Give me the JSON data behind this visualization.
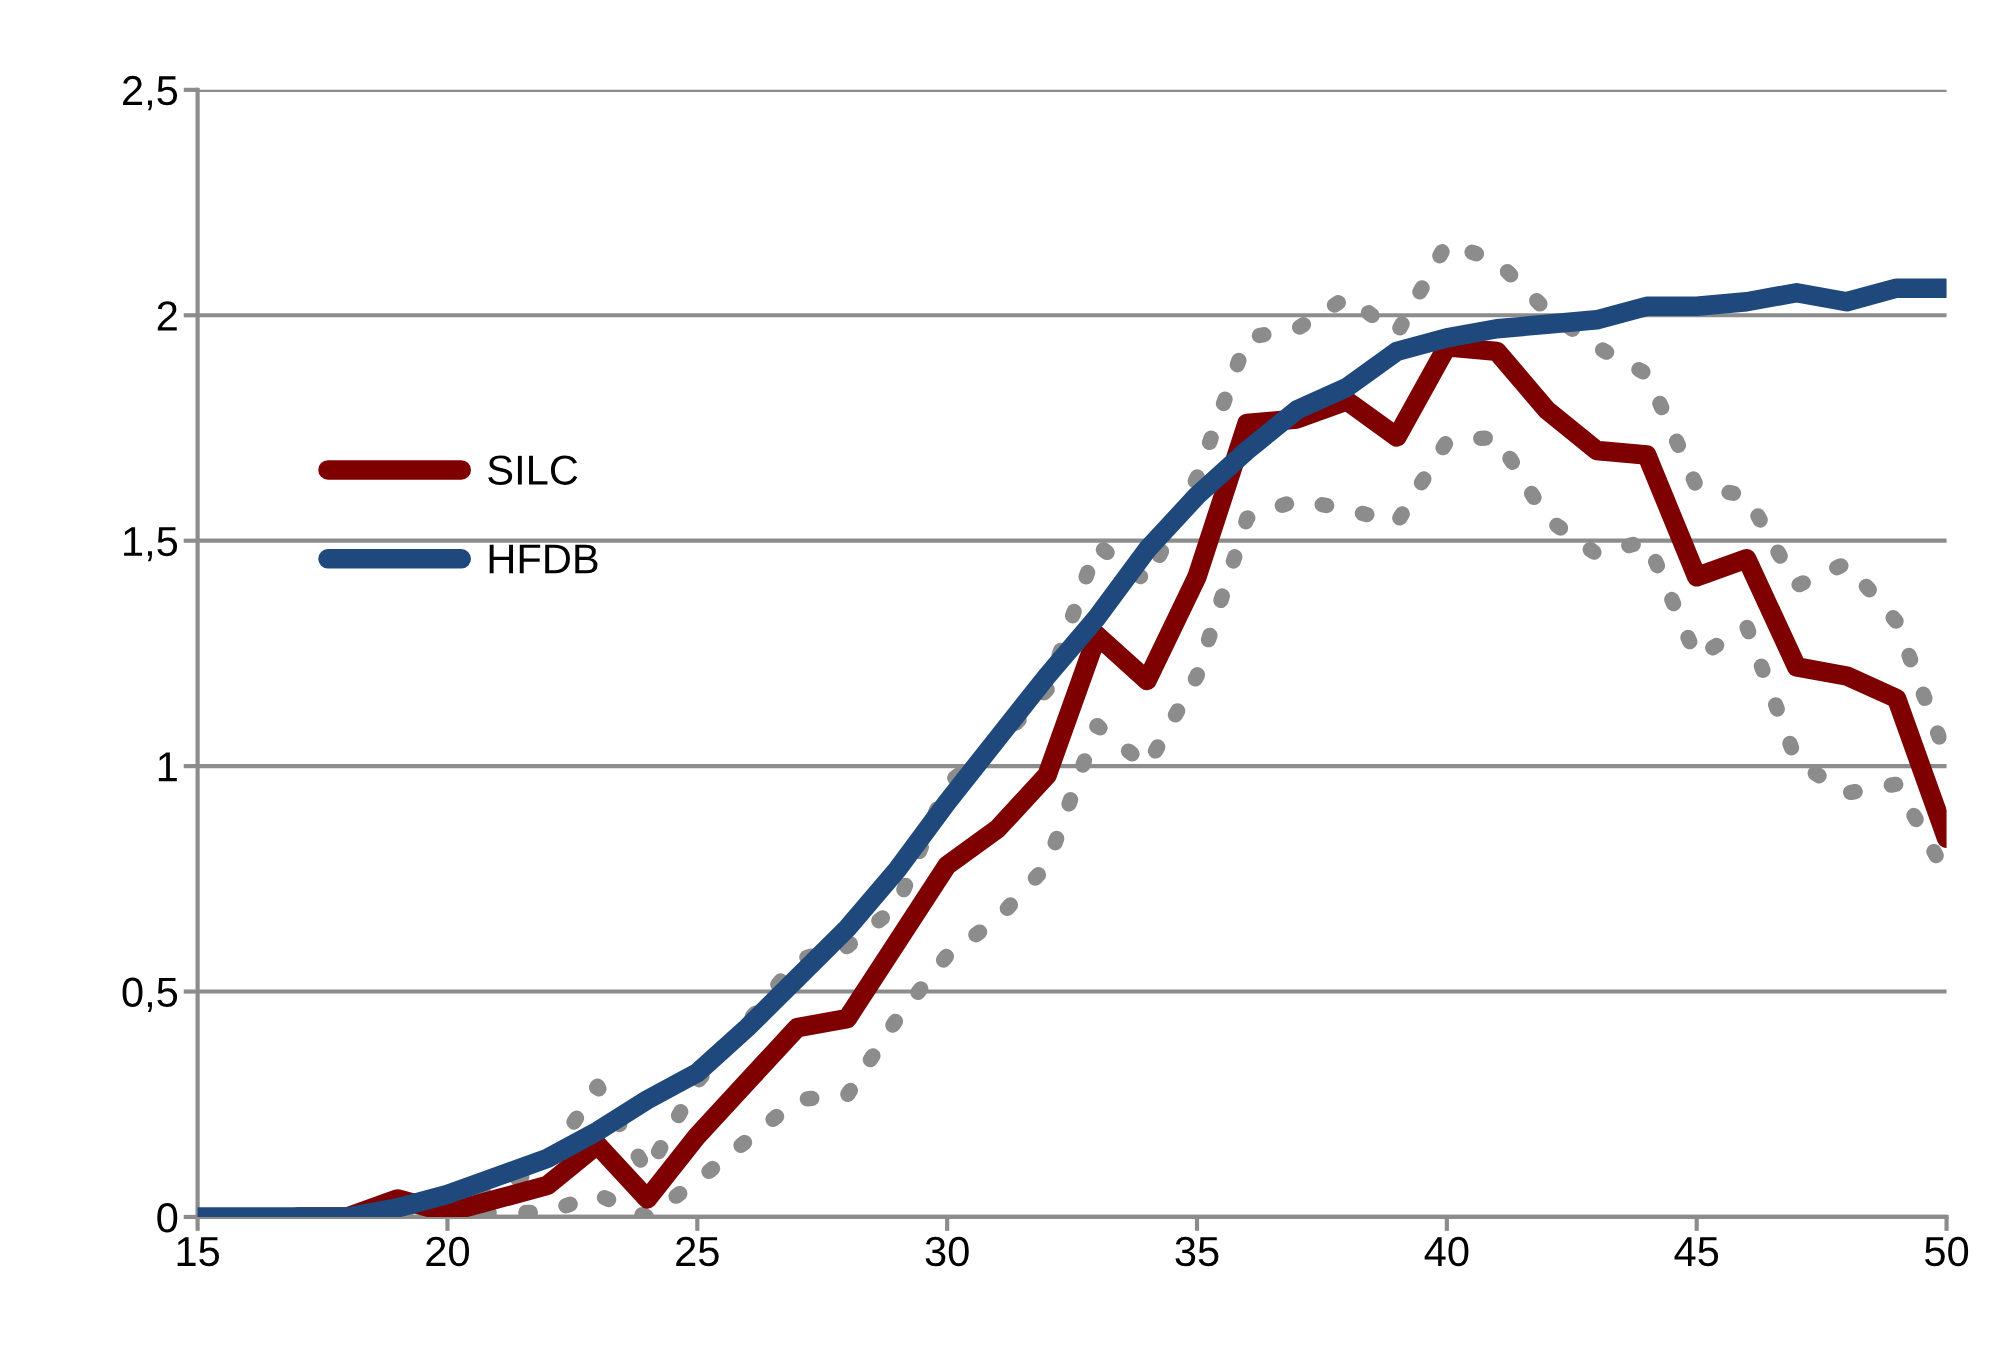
{
  "chart_data": {
    "type": "line",
    "x": [
      15,
      16,
      17,
      18,
      19,
      20,
      21,
      22,
      23,
      24,
      25,
      26,
      27,
      28,
      29,
      30,
      31,
      32,
      33,
      34,
      35,
      36,
      37,
      38,
      39,
      40,
      41,
      42,
      43,
      44,
      45,
      46,
      47,
      48,
      49,
      50
    ],
    "series": [
      {
        "name": "SILC",
        "color": "#7f0000",
        "line_style": "solid",
        "values": [
          null,
          null,
          0,
          0,
          0.04,
          0.01,
          0.04,
          0.07,
          0.16,
          0.04,
          0.18,
          0.3,
          0.42,
          0.44,
          0.61,
          0.78,
          0.86,
          0.98,
          1.29,
          1.19,
          1.42,
          1.76,
          1.77,
          1.81,
          1.73,
          1.93,
          1.92,
          1.79,
          1.7,
          1.69,
          1.42,
          1.46,
          1.22,
          1.2,
          1.15,
          0.84
        ]
      },
      {
        "name": "HFDB",
        "color": "#1f497d",
        "line_style": "solid",
        "values": [
          0,
          0,
          0,
          0,
          0.02,
          0.05,
          0.09,
          0.13,
          0.19,
          0.26,
          0.32,
          0.42,
          0.53,
          0.64,
          0.77,
          0.92,
          1.06,
          1.2,
          1.33,
          1.48,
          1.6,
          1.7,
          1.79,
          1.84,
          1.92,
          1.95,
          1.97,
          1.98,
          1.99,
          2.02,
          2.02,
          2.03,
          2.05,
          2.03,
          2.06,
          2.06
        ]
      },
      {
        "color": "#8c8c8c",
        "line_style": "dotted",
        "values": [
          0,
          0,
          0,
          0,
          0.04,
          0.02,
          0.06,
          0.12,
          0.29,
          0.1,
          0.3,
          0.43,
          0.57,
          0.6,
          0.69,
          0.96,
          1.05,
          1.17,
          1.49,
          1.41,
          1.64,
          1.95,
          1.97,
          2.04,
          1.96,
          2.16,
          2.12,
          2.01,
          1.93,
          1.87,
          1.62,
          1.6,
          1.4,
          1.45,
          1.32,
          1.02
        ]
      },
      {
        "color": "#8c8c8c",
        "line_style": "dotted",
        "values": [
          0,
          0,
          0,
          0,
          0.02,
          0,
          0.01,
          0.01,
          0.05,
          0,
          0.08,
          0.17,
          0.26,
          0.27,
          0.44,
          0.58,
          0.66,
          0.78,
          1.09,
          1,
          1.2,
          1.55,
          1.59,
          1.57,
          1.54,
          1.72,
          1.73,
          1.55,
          1.47,
          1.5,
          1.24,
          1.31,
          1.01,
          0.94,
          0.96,
          0.76
        ]
      }
    ],
    "xlim": [
      15,
      50
    ],
    "xticks": [
      15,
      20,
      25,
      30,
      35,
      40,
      45,
      50
    ],
    "ylim": [
      0,
      2.5
    ],
    "yticks": [
      0,
      {
        "value": 0.5,
        "label": "0,5"
      },
      1,
      {
        "value": 1.5,
        "label": "1,5"
      },
      2,
      {
        "value": 2.5,
        "label": "2,5"
      }
    ],
    "grid": "y",
    "legend": "center left",
    "marker": "none"
  }
}
